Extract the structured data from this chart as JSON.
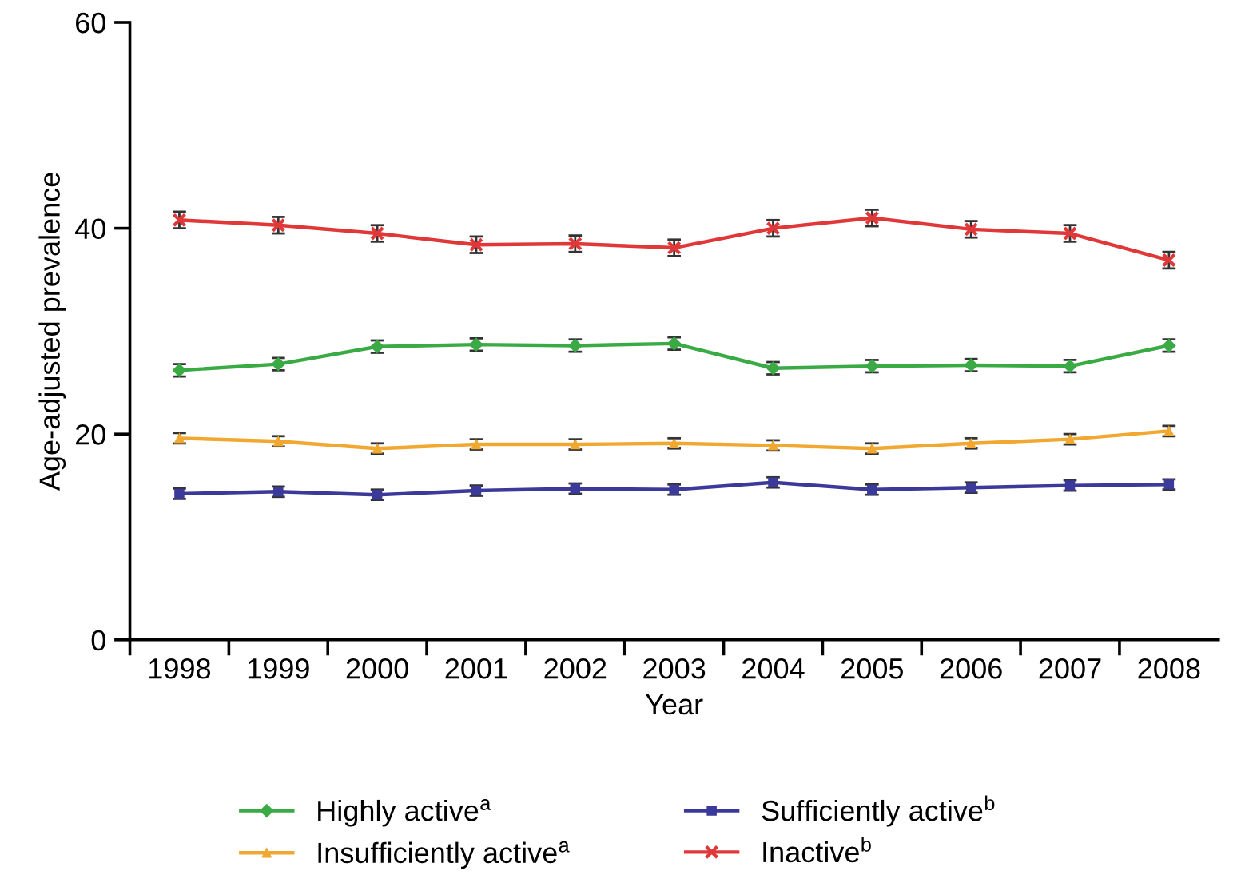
{
  "chart_data": {
    "type": "line",
    "xlabel": "Year",
    "ylabel": "Age-adjusted prevalence",
    "categories": [
      "1998",
      "1999",
      "2000",
      "2001",
      "2002",
      "2003",
      "2004",
      "2005",
      "2006",
      "2007",
      "2008"
    ],
    "ylim": [
      0,
      60
    ],
    "yticks": [
      0,
      20,
      40,
      60
    ],
    "grid": false,
    "legend": "bottom",
    "series": [
      {
        "name": "Highly active$^{a}$",
        "color": "#3aaa45",
        "marker": "diamond",
        "values": [
          26.2,
          26.8,
          28.5,
          28.7,
          28.6,
          28.8,
          26.4,
          26.6,
          26.7,
          26.6,
          28.6
        ],
        "errors": [
          0.6,
          0.6,
          0.6,
          0.6,
          0.6,
          0.6,
          0.6,
          0.6,
          0.6,
          0.6,
          0.6
        ]
      },
      {
        "name": "Insufficiently active$^{a}$",
        "color": "#f0a830",
        "marker": "triangle",
        "values": [
          19.6,
          19.3,
          18.6,
          19.0,
          19.0,
          19.1,
          18.9,
          18.6,
          19.1,
          19.5,
          20.3
        ],
        "errors": [
          0.5,
          0.5,
          0.5,
          0.5,
          0.5,
          0.5,
          0.5,
          0.5,
          0.5,
          0.5,
          0.5
        ]
      },
      {
        "name": "Sufficiently active$^{b}$",
        "color": "#3b3a9a",
        "marker": "square",
        "values": [
          14.2,
          14.4,
          14.1,
          14.5,
          14.7,
          14.6,
          15.3,
          14.6,
          14.8,
          15.0,
          15.1
        ],
        "errors": [
          0.5,
          0.5,
          0.5,
          0.5,
          0.5,
          0.5,
          0.5,
          0.5,
          0.5,
          0.5,
          0.5
        ]
      },
      {
        "name": "Inactive$^{b}$",
        "color": "#e03838",
        "marker": "cross",
        "values": [
          40.8,
          40.3,
          39.5,
          38.4,
          38.5,
          38.1,
          40.0,
          41.0,
          39.9,
          39.5,
          36.9
        ],
        "errors": [
          0.8,
          0.8,
          0.8,
          0.8,
          0.8,
          0.8,
          0.8,
          0.8,
          0.8,
          0.8,
          0.8
        ]
      }
    ]
  }
}
